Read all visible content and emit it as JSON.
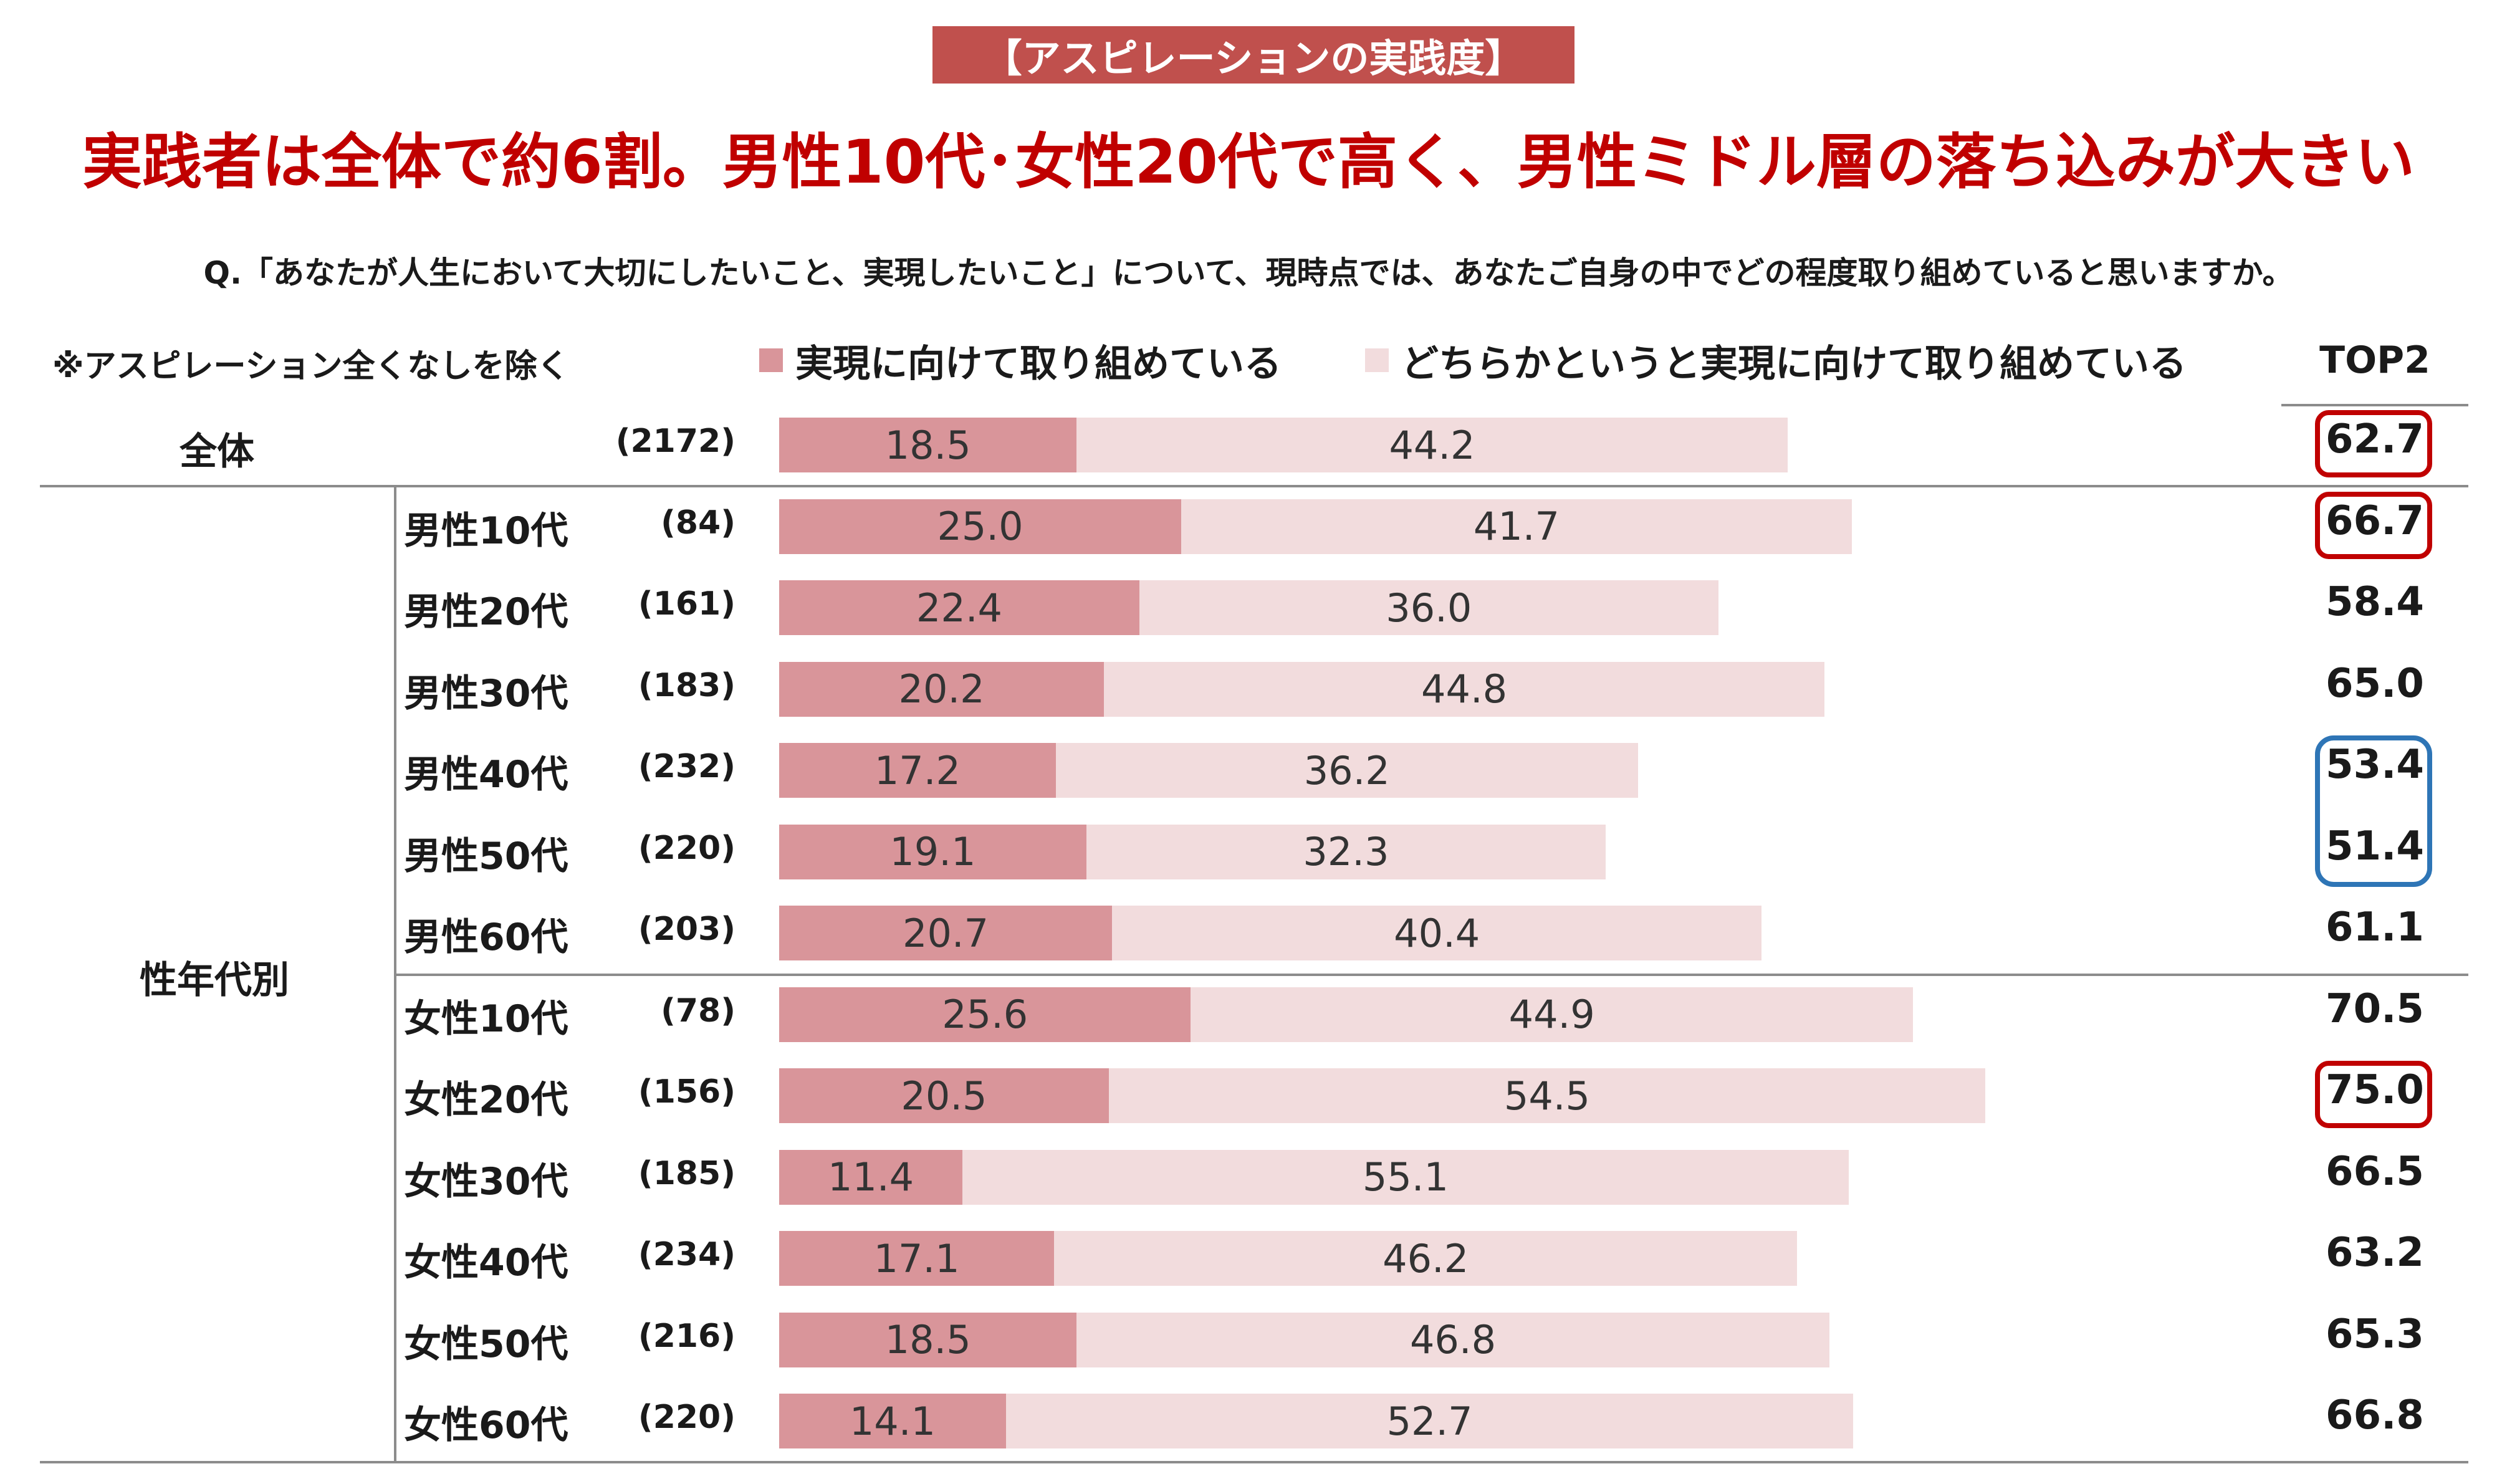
{
  "header": {
    "label": "【アスピレーションの実践度】",
    "headline": "実践者は全体で約6割。男性10代･女性20代で高く、男性ミドル層の落ち込みが大きい",
    "question": "Q.「あなたが人生において大切にしたいこと、実現したいこと」について、現時点では、あなたご自身の中でどの程度取り組めていると思いますか。",
    "note": "※アスピレーション全くなしを除く"
  },
  "legend": {
    "series_a": "実現に向けて取り組めている",
    "series_b": "どちらかというと実現に向けて取り組めている",
    "top2": "TOP2"
  },
  "colors": {
    "series_a": "#d9959a",
    "series_b": "#f2dcdd",
    "highlight_high": "#c00000",
    "highlight_low": "#2e75b6"
  },
  "groups": {
    "total": "全体",
    "segment": "性年代別"
  },
  "chart_data": {
    "type": "bar",
    "orientation": "horizontal",
    "stacked": true,
    "categories": [
      "全体",
      "男性10代",
      "男性20代",
      "男性30代",
      "男性40代",
      "男性50代",
      "男性60代",
      "女性10代",
      "女性20代",
      "女性30代",
      "女性40代",
      "女性50代",
      "女性60代"
    ],
    "sample_sizes": [
      "(2172)",
      "(84)",
      "(161)",
      "(183)",
      "(232)",
      "(220)",
      "(203)",
      "(78)",
      "(156)",
      "(185)",
      "(234)",
      "(216)",
      "(220)"
    ],
    "series": [
      {
        "name": "実現に向けて取り組めている",
        "values": [
          18.5,
          25.0,
          22.4,
          20.2,
          17.2,
          19.1,
          20.7,
          25.6,
          20.5,
          11.4,
          17.1,
          18.5,
          14.1
        ]
      },
      {
        "name": "どちらかというと実現に向けて取り組めている",
        "values": [
          44.2,
          41.7,
          36.0,
          44.8,
          36.2,
          32.3,
          40.4,
          44.9,
          54.5,
          55.1,
          46.2,
          46.8,
          52.7
        ]
      }
    ],
    "top2": [
      "62.7",
      "66.7",
      "58.4",
      "65.0",
      "53.4",
      "51.4",
      "61.1",
      "70.5",
      "75.0",
      "66.5",
      "63.2",
      "65.3",
      "66.8"
    ],
    "highlight_high": [
      0,
      1,
      8
    ],
    "highlight_low": [
      4,
      5
    ],
    "xlim": [
      0,
      100
    ],
    "grid": false,
    "legend_position": "top"
  }
}
